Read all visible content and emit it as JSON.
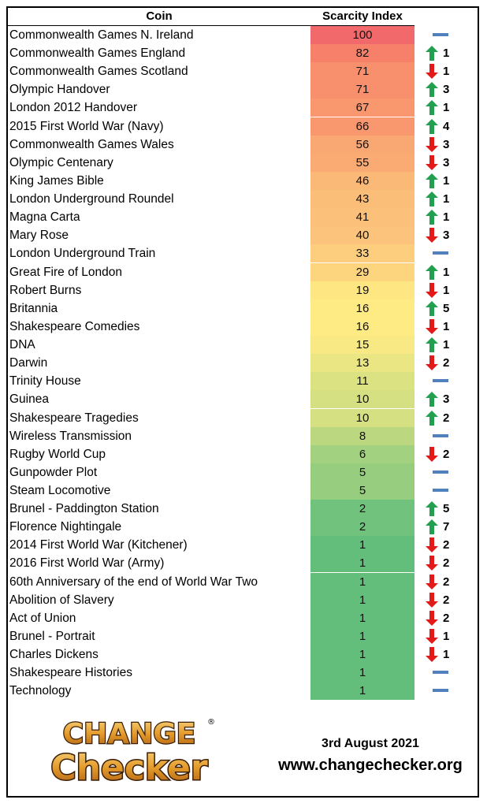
{
  "header": {
    "coin": "Coin",
    "index": "Scarcity Index"
  },
  "footer": {
    "date": "3rd August 2021",
    "website": "www.changechecker.org"
  },
  "logo": {
    "line1": "CHANGE",
    "line2": "Checker",
    "registered": "®"
  },
  "colors": {
    "up": "#22a050",
    "down": "#e21a1a",
    "same": "#4f81bd"
  },
  "chart_data": {
    "type": "table",
    "columns": [
      "Coin",
      "Scarcity Index"
    ],
    "rows": [
      {
        "coin": "Commonwealth Games N. Ireland",
        "index": 100,
        "trend": "same",
        "change": ""
      },
      {
        "coin": "Commonwealth Games England",
        "index": 82,
        "trend": "up",
        "change": "1"
      },
      {
        "coin": "Commonwealth Games Scotland",
        "index": 71,
        "trend": "down",
        "change": "1"
      },
      {
        "coin": "Olympic Handover",
        "index": 71,
        "trend": "up",
        "change": "3"
      },
      {
        "coin": "London 2012 Handover",
        "index": 67,
        "trend": "up",
        "change": "1"
      },
      {
        "coin": "2015 First World War (Navy)",
        "index": 66,
        "trend": "up",
        "change": "4"
      },
      {
        "coin": "Commonwealth Games Wales",
        "index": 56,
        "trend": "down",
        "change": "3"
      },
      {
        "coin": "Olympic Centenary",
        "index": 55,
        "trend": "down",
        "change": "3"
      },
      {
        "coin": "King James Bible",
        "index": 46,
        "trend": "up",
        "change": "1"
      },
      {
        "coin": "London Underground Roundel",
        "index": 43,
        "trend": "up",
        "change": "1"
      },
      {
        "coin": "Magna Carta",
        "index": 41,
        "trend": "up",
        "change": "1"
      },
      {
        "coin": "Mary Rose",
        "index": 40,
        "trend": "down",
        "change": "3"
      },
      {
        "coin": "London Underground Train",
        "index": 33,
        "trend": "same",
        "change": ""
      },
      {
        "coin": "Great Fire of London",
        "index": 29,
        "trend": "up",
        "change": "1"
      },
      {
        "coin": "Robert Burns",
        "index": 19,
        "trend": "down",
        "change": "1"
      },
      {
        "coin": "Britannia",
        "index": 16,
        "trend": "up",
        "change": "5"
      },
      {
        "coin": "Shakespeare Comedies",
        "index": 16,
        "trend": "down",
        "change": "1"
      },
      {
        "coin": "DNA",
        "index": 15,
        "trend": "up",
        "change": "1"
      },
      {
        "coin": "Darwin",
        "index": 13,
        "trend": "down",
        "change": "2"
      },
      {
        "coin": "Trinity House",
        "index": 11,
        "trend": "same",
        "change": ""
      },
      {
        "coin": "Guinea",
        "index": 10,
        "trend": "up",
        "change": "3"
      },
      {
        "coin": "Shakespeare Tragedies",
        "index": 10,
        "trend": "up",
        "change": "2"
      },
      {
        "coin": "Wireless Transmission",
        "index": 8,
        "trend": "same",
        "change": ""
      },
      {
        "coin": "Rugby World Cup",
        "index": 6,
        "trend": "down",
        "change": "2"
      },
      {
        "coin": "Gunpowder Plot",
        "index": 5,
        "trend": "same",
        "change": ""
      },
      {
        "coin": "Steam Locomotive",
        "index": 5,
        "trend": "same",
        "change": ""
      },
      {
        "coin": "Brunel - Paddington Station",
        "index": 2,
        "trend": "up",
        "change": "5"
      },
      {
        "coin": "Florence Nightingale",
        "index": 2,
        "trend": "up",
        "change": "7"
      },
      {
        "coin": "2014 First World War (Kitchener)",
        "index": 1,
        "trend": "down",
        "change": "2"
      },
      {
        "coin": "2016 First World War (Army)",
        "index": 1,
        "trend": "down",
        "change": "2"
      },
      {
        "coin": "60th Anniversary of the end of World War Two",
        "index": 1,
        "trend": "down",
        "change": "2"
      },
      {
        "coin": "Abolition of Slavery",
        "index": 1,
        "trend": "down",
        "change": "2"
      },
      {
        "coin": "Act of Union",
        "index": 1,
        "trend": "down",
        "change": "2"
      },
      {
        "coin": "Brunel - Portrait",
        "index": 1,
        "trend": "down",
        "change": "1"
      },
      {
        "coin": "Charles Dickens",
        "index": 1,
        "trend": "down",
        "change": "1"
      },
      {
        "coin": "Shakespeare Histories",
        "index": 1,
        "trend": "same",
        "change": ""
      },
      {
        "coin": "Technology",
        "index": 1,
        "trend": "same",
        "change": ""
      }
    ]
  }
}
